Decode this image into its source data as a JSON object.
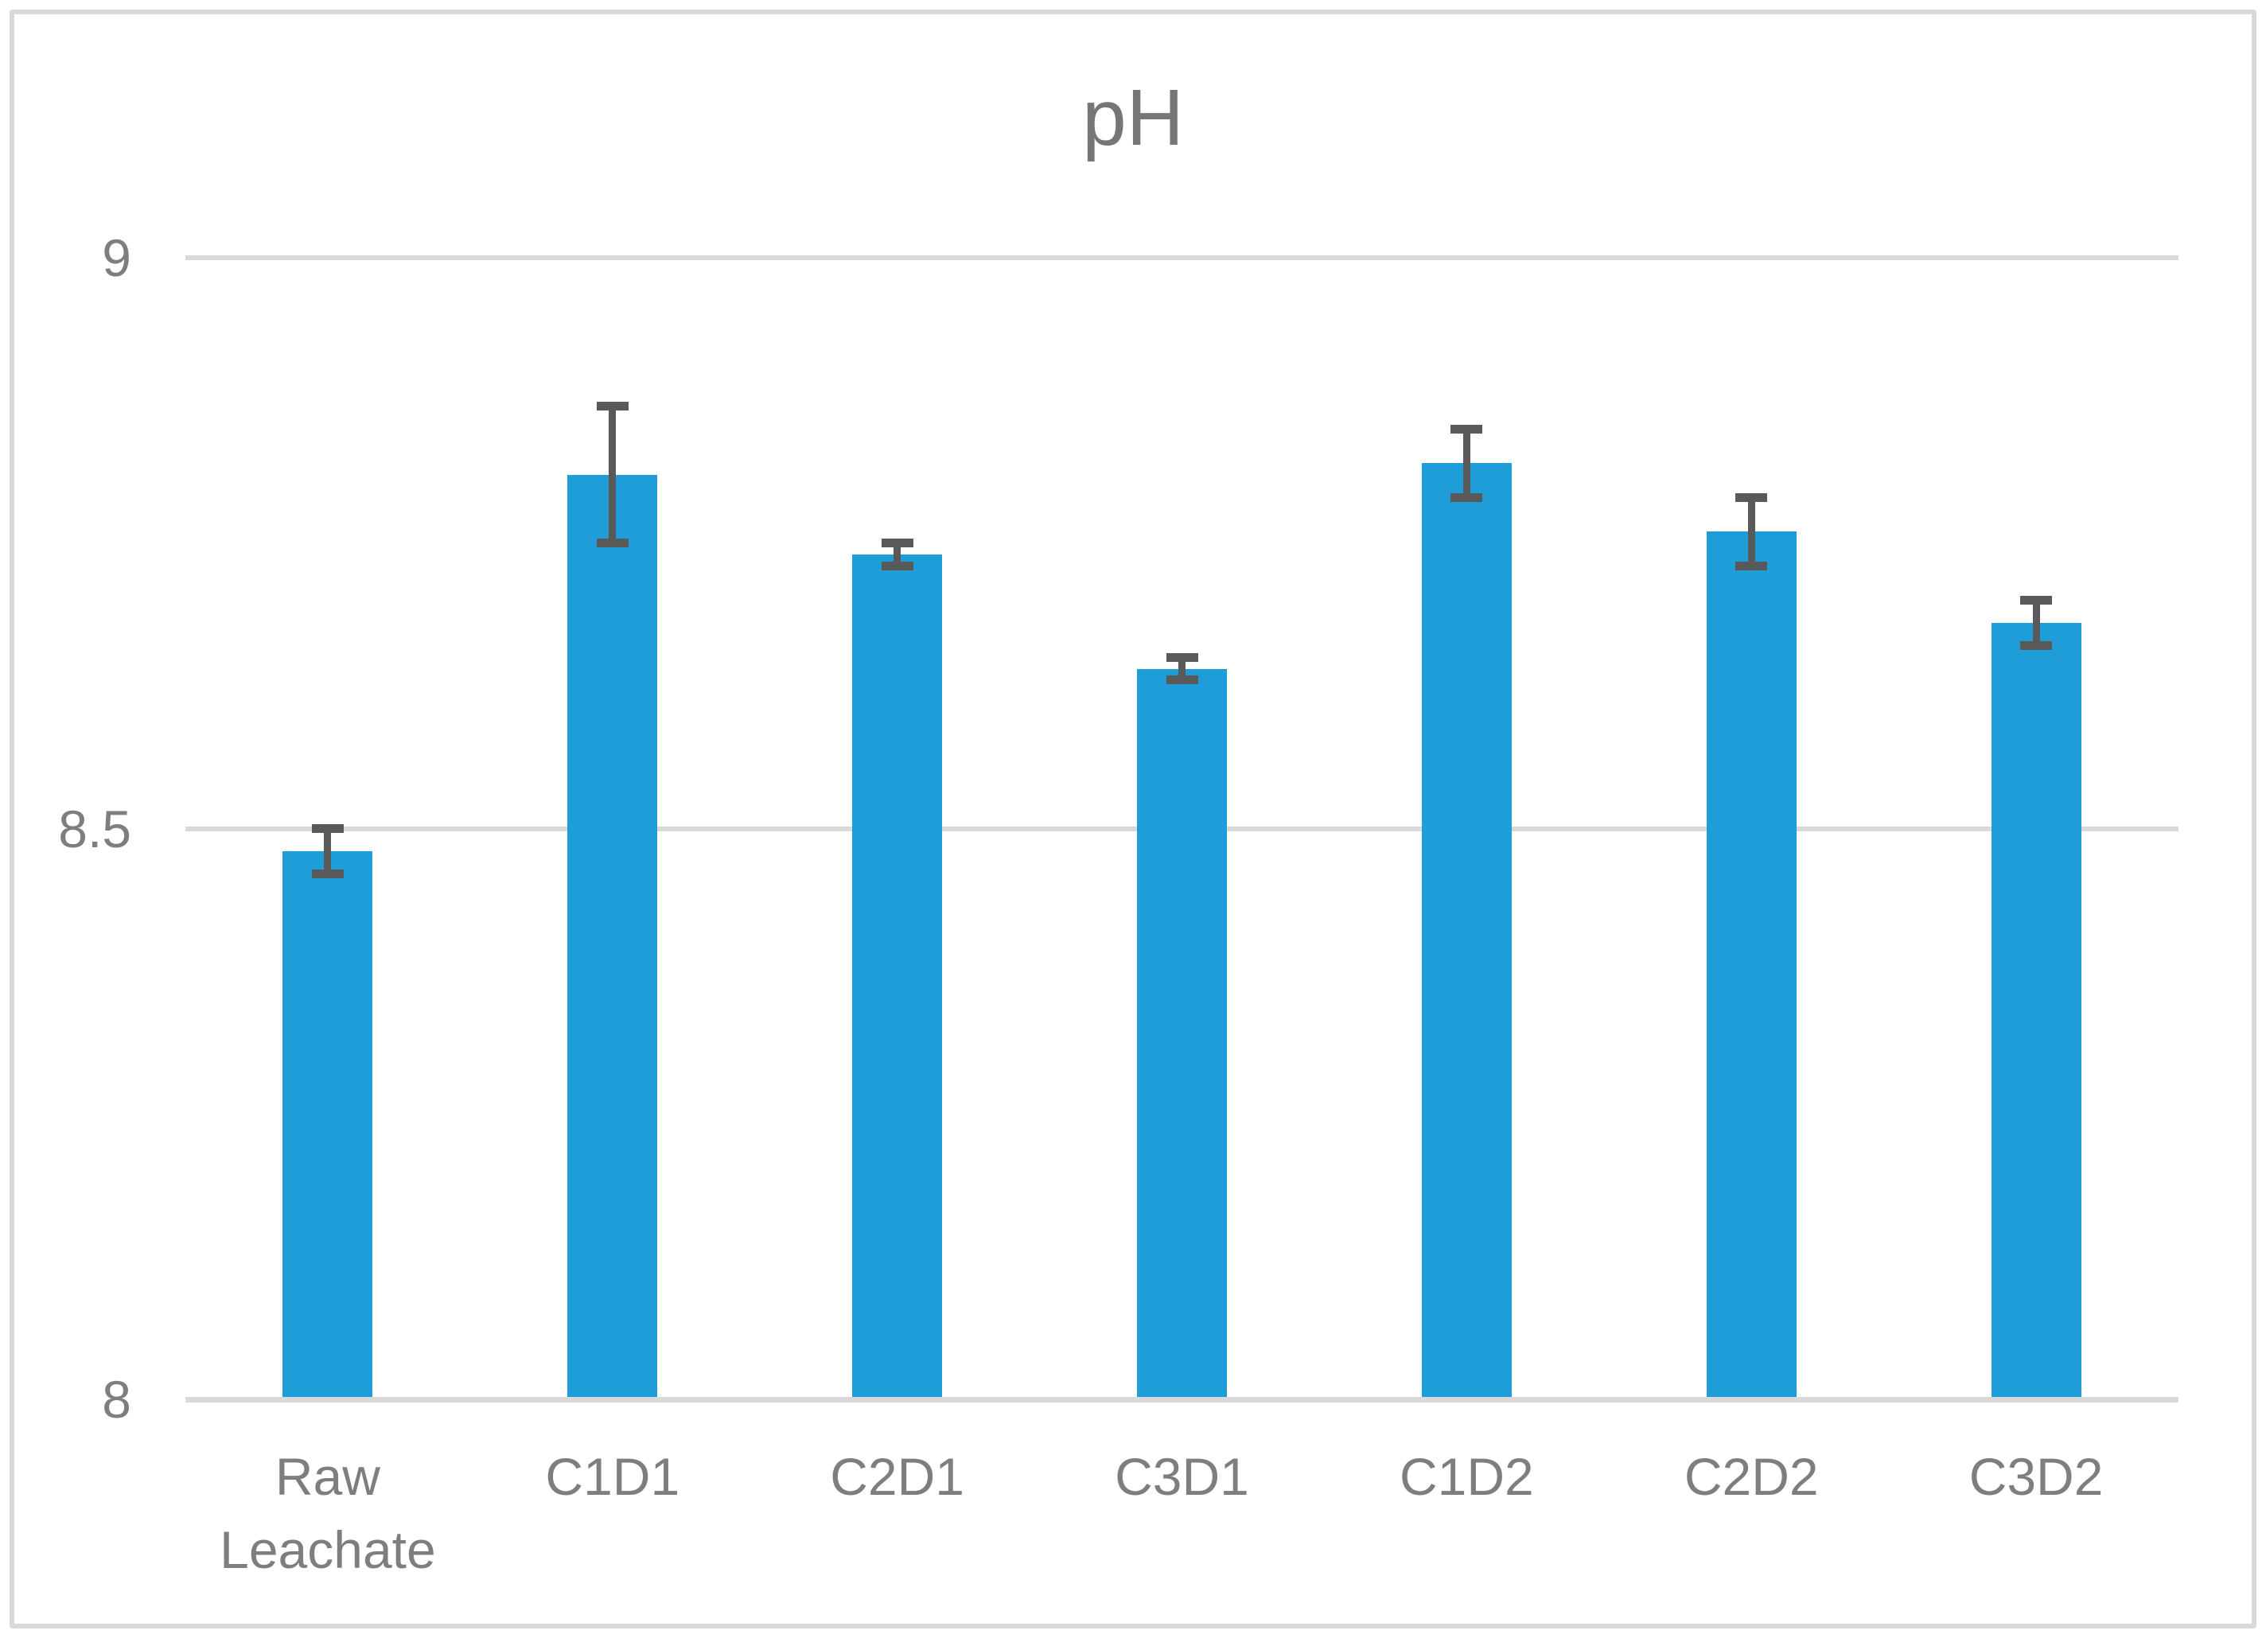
{
  "title": "pH",
  "chart_data": {
    "type": "bar",
    "title": "pH",
    "categories": [
      "Raw Leachate",
      "C1D1",
      "C2D1",
      "C3D1",
      "C1D2",
      "C2D2",
      "C3D2"
    ],
    "values": [
      8.48,
      8.81,
      8.74,
      8.64,
      8.82,
      8.76,
      8.68
    ],
    "error_bars": [
      0.02,
      0.06,
      0.01,
      0.01,
      0.03,
      0.03,
      0.02
    ],
    "xlabel": "",
    "ylabel": "",
    "ylim": [
      8,
      9
    ],
    "y_ticks": [
      {
        "label": "8",
        "value": 8
      },
      {
        "label": "8.5",
        "value": 8.5
      },
      {
        "label": "9",
        "value": 9
      }
    ],
    "grid": true,
    "legend": false,
    "colors": {
      "bar": "#1F9DD8",
      "error_bar": "#595959",
      "gridline": "#D9D9D9",
      "axis_line": "#D9D9D9",
      "border": "#D9D9D9",
      "title_text": "#767676",
      "tick_text": "#7E7E7E"
    }
  }
}
